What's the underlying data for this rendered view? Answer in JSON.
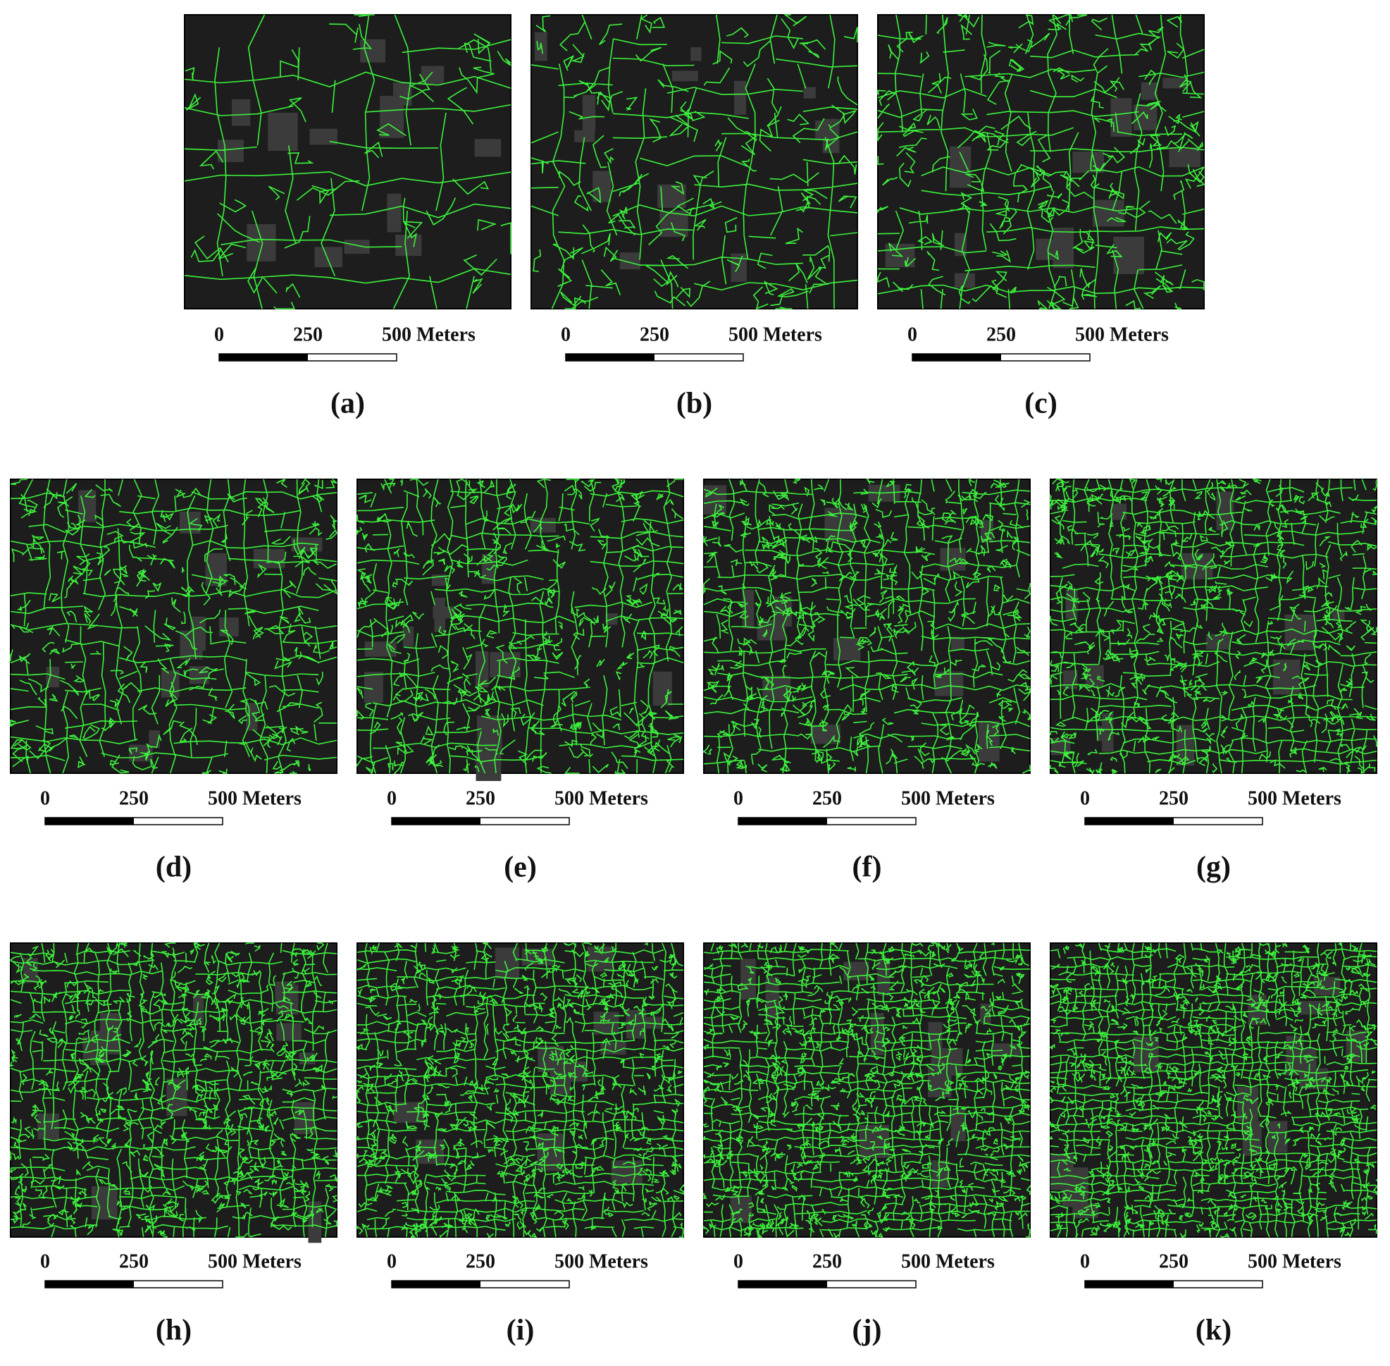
{
  "figure": {
    "scale_bar": {
      "ticks": [
        0,
        250,
        500
      ],
      "unit": "Meters"
    },
    "panels": [
      {
        "label": "(a)"
      },
      {
        "label": "(b)"
      },
      {
        "label": "(c)"
      },
      {
        "label": "(d)"
      },
      {
        "label": "(e)"
      },
      {
        "label": "(f)"
      },
      {
        "label": "(g)"
      },
      {
        "label": "(h)"
      },
      {
        "label": "(i)"
      },
      {
        "label": "(j)"
      },
      {
        "label": "(k)"
      }
    ]
  }
}
